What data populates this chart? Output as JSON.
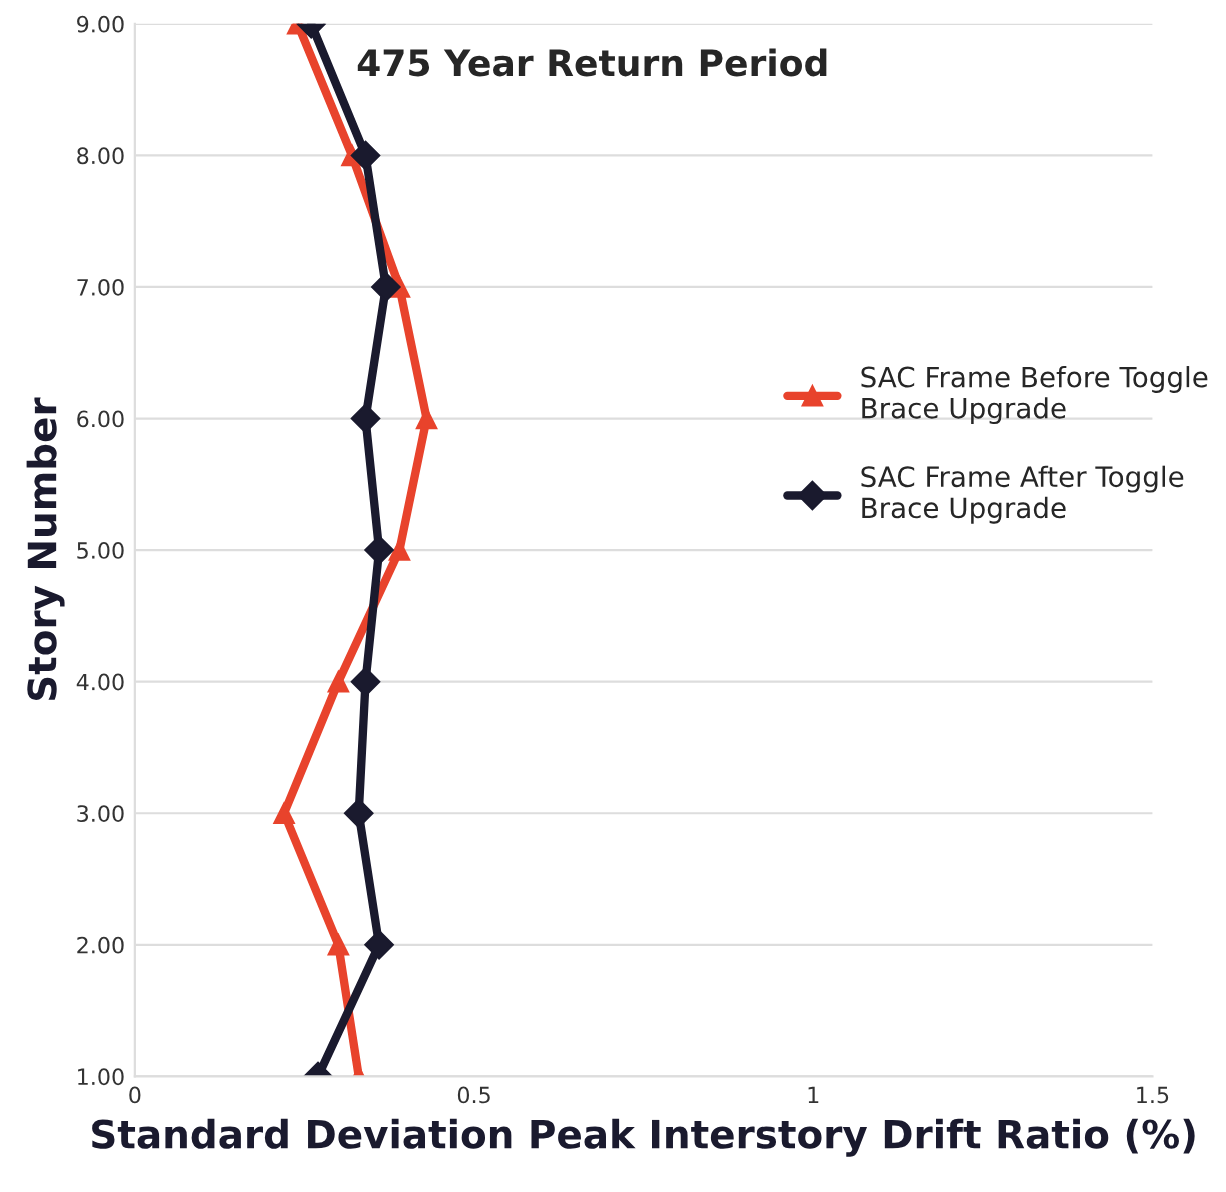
{
  "chart_data": {
    "type": "line",
    "title": "475 Year Return Period",
    "xlabel": "Standard Deviation Peak Interstory Drift Ratio (%)",
    "ylabel": "Story Number",
    "series": [
      {
        "name": "SAC Frame Before Toggle Brace Upgrade",
        "color": "#e8432c",
        "marker": "triangle",
        "x": [
          0.24,
          0.32,
          0.39,
          0.43,
          0.39,
          0.3,
          0.22,
          0.3,
          0.33
        ],
        "values": [
          9,
          8,
          7,
          6,
          5,
          4,
          3,
          2,
          1
        ]
      },
      {
        "name": "SAC Frame After Toggle Brace Upgrade",
        "color": "#1a1a2e",
        "marker": "diamond",
        "x": [
          0.26,
          0.34,
          0.37,
          0.34,
          0.36,
          0.34,
          0.33,
          0.36,
          0.27
        ],
        "values": [
          9,
          8,
          7,
          6,
          5,
          4,
          3,
          2,
          1
        ]
      }
    ],
    "xlim": [
      0,
      1.5
    ],
    "xticks": [
      0,
      {
        "value": 0.5,
        "label": "0.5"
      },
      1,
      {
        "value": 1.5,
        "label": "1.5"
      }
    ],
    "ylim": [
      1,
      9
    ],
    "yticks": [
      {
        "value": 1,
        "label": "1.00"
      },
      {
        "value": 2,
        "label": "2.00"
      },
      {
        "value": 3,
        "label": "3.00"
      },
      {
        "value": 4,
        "label": "4.00"
      },
      {
        "value": 5,
        "label": "5.00"
      },
      {
        "value": 6,
        "label": "6.00"
      },
      {
        "value": 7,
        "label": "7.00"
      },
      {
        "value": 8,
        "label": "8.00"
      },
      {
        "value": 9,
        "label": "9.00"
      }
    ],
    "grid": "y",
    "legend": "right",
    "line_style": "solid"
  }
}
